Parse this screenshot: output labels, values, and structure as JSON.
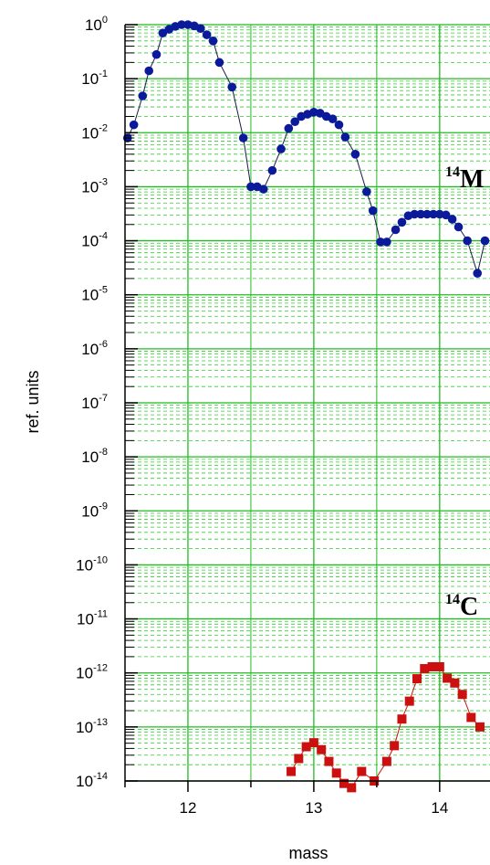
{
  "chart_data": {
    "type": "scatter",
    "title": "",
    "xlabel": "mass",
    "ylabel": "ref. units",
    "xlim": [
      11.5,
      14.4
    ],
    "ylim": [
      1e-14,
      1
    ],
    "yscale": "log",
    "grid": true,
    "x_ticks": [
      "12",
      "13",
      "14"
    ],
    "y_ticks": [
      {
        "base": "10",
        "exp": "0"
      },
      {
        "base": "10",
        "exp": "-1"
      },
      {
        "base": "10",
        "exp": "-2"
      },
      {
        "base": "10",
        "exp": "-3"
      },
      {
        "base": "10",
        "exp": "-4"
      },
      {
        "base": "10",
        "exp": "-5"
      },
      {
        "base": "10",
        "exp": "-6"
      },
      {
        "base": "10",
        "exp": "-7"
      },
      {
        "base": "10",
        "exp": "-8"
      },
      {
        "base": "10",
        "exp": "-9"
      },
      {
        "base": "10",
        "exp": "-10"
      },
      {
        "base": "10",
        "exp": "-11"
      },
      {
        "base": "10",
        "exp": "-12"
      },
      {
        "base": "10",
        "exp": "-13"
      },
      {
        "base": "10",
        "exp": "-14"
      }
    ],
    "annotations": [
      {
        "sup": "14",
        "text": "M",
        "near": "upper series"
      },
      {
        "sup": "14",
        "text": "C",
        "near": "lower series"
      }
    ],
    "series": [
      {
        "marker": "circle",
        "color": "#0a1a9a",
        "line_color": "#1a1a4a",
        "x": [
          11.52,
          11.57,
          11.64,
          11.69,
          11.75,
          11.8,
          11.85,
          11.9,
          11.95,
          12.0,
          12.05,
          12.1,
          12.15,
          12.2,
          12.25,
          12.35,
          12.44,
          12.5,
          12.55,
          12.6,
          12.67,
          12.74,
          12.8,
          12.85,
          12.9,
          12.95,
          13.0,
          13.05,
          13.1,
          13.15,
          13.2,
          13.25,
          13.33,
          13.42,
          13.47,
          13.53,
          13.58,
          13.65,
          13.7,
          13.75,
          13.8,
          13.85,
          13.9,
          13.95,
          14.0,
          14.05,
          14.1,
          14.15,
          14.22,
          14.3,
          14.36
        ],
        "y": [
          0.008,
          0.014,
          0.048,
          0.14,
          0.28,
          0.7,
          0.82,
          0.93,
          1.0,
          1.0,
          0.95,
          0.85,
          0.65,
          0.5,
          0.2,
          0.07,
          0.008,
          0.001,
          0.001,
          0.0009,
          0.002,
          0.005,
          0.012,
          0.016,
          0.02,
          0.022,
          0.024,
          0.023,
          0.02,
          0.018,
          0.014,
          0.0083,
          0.004,
          0.00081,
          0.00036,
          9.5e-05,
          9.5e-05,
          0.00016,
          0.00022,
          0.00029,
          0.00031,
          0.00031,
          0.00031,
          0.00031,
          0.00031,
          0.0003,
          0.00025,
          0.00018,
          0.0001,
          2.5e-05,
          0.0001
        ]
      },
      {
        "marker": "square",
        "color": "#cc1010",
        "line_color": "#cc1010",
        "x": [
          12.82,
          12.88,
          12.94,
          13.0,
          13.06,
          13.12,
          13.18,
          13.24,
          13.3,
          13.38,
          13.48,
          13.58,
          13.64,
          13.7,
          13.76,
          13.82,
          13.88,
          13.94,
          14.0,
          14.06,
          14.12,
          14.18,
          14.25,
          14.32
        ],
        "y": [
          1.5e-14,
          2.6e-14,
          4.3e-14,
          5.1e-14,
          3.8e-14,
          2.3e-14,
          1.4e-14,
          9e-15,
          7.5e-15,
          1.5e-14,
          1e-14,
          2.3e-14,
          4.5e-14,
          1.4e-13,
          3e-13,
          7.8e-13,
          1.2e-12,
          1.3e-12,
          1.3e-12,
          8e-13,
          6.5e-13,
          4e-13,
          1.5e-13,
          1e-13
        ]
      }
    ]
  }
}
